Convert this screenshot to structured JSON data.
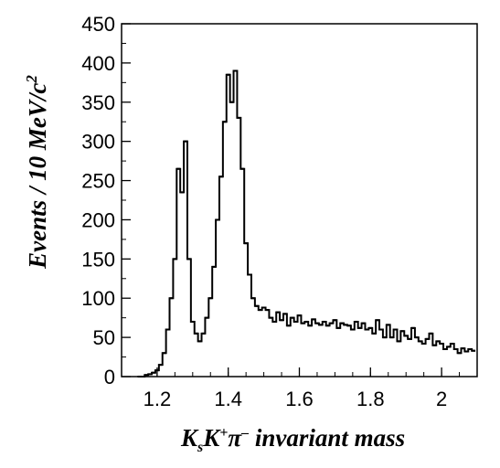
{
  "chart_data": {
    "type": "line",
    "style": "step histogram",
    "title": "",
    "xlabel": "KₛK⁺π⁻ invariant mass",
    "xlabel_parts": {
      "k1": "K",
      "sub": "s",
      "k2": "K",
      "sup1": "+",
      "pi": "π",
      "sup2": "–",
      "rest": " invariant mass"
    },
    "ylabel": "Events / 10 MeV/c²",
    "ylabel_parts": {
      "main": "Events / 10 MeV/",
      "c": "c",
      "sup": "2"
    },
    "xlim": [
      1.1,
      2.1
    ],
    "ylim": [
      0,
      450
    ],
    "x_ticks": [
      1.2,
      1.4,
      1.6,
      1.8,
      2.0
    ],
    "x_tick_labels": [
      "1.2",
      "1.4",
      "1.6",
      "1.8",
      "2"
    ],
    "y_ticks": [
      0,
      50,
      100,
      150,
      200,
      250,
      300,
      350,
      400,
      450
    ],
    "y_tick_labels": [
      "0",
      "50",
      "100",
      "150",
      "200",
      "250",
      "300",
      "350",
      "400",
      "450"
    ],
    "grid": false,
    "bin_width": 0.01,
    "series": [
      {
        "x": [
          1.15,
          1.16,
          1.17,
          1.18,
          1.19,
          1.2,
          1.21,
          1.22,
          1.23,
          1.24,
          1.25,
          1.26,
          1.27,
          1.28,
          1.29,
          1.3,
          1.31,
          1.32,
          1.33,
          1.34,
          1.35,
          1.36,
          1.37,
          1.38,
          1.39,
          1.4,
          1.41,
          1.42,
          1.43,
          1.44,
          1.45,
          1.46,
          1.47,
          1.48,
          1.49,
          1.5,
          1.51,
          1.52,
          1.53,
          1.54,
          1.55,
          1.56,
          1.57,
          1.58,
          1.59,
          1.6,
          1.61,
          1.62,
          1.63,
          1.64,
          1.65,
          1.66,
          1.67,
          1.68,
          1.69,
          1.7,
          1.71,
          1.72,
          1.73,
          1.74,
          1.75,
          1.76,
          1.77,
          1.78,
          1.79,
          1.8,
          1.81,
          1.82,
          1.83,
          1.84,
          1.85,
          1.86,
          1.87,
          1.88,
          1.89,
          1.9,
          1.91,
          1.92,
          1.93,
          1.94,
          1.95,
          1.96,
          1.97,
          1.98,
          1.99,
          2.0,
          2.01,
          2.02,
          2.03,
          2.04,
          2.05,
          2.06,
          2.07,
          2.08,
          2.09
        ],
        "values": [
          0,
          0,
          2,
          3,
          5,
          8,
          15,
          30,
          60,
          100,
          150,
          265,
          235,
          300,
          150,
          70,
          55,
          45,
          55,
          75,
          100,
          140,
          200,
          255,
          325,
          385,
          350,
          390,
          330,
          265,
          170,
          130,
          100,
          90,
          85,
          88,
          85,
          75,
          70,
          82,
          72,
          80,
          65,
          75,
          70,
          78,
          68,
          70,
          65,
          73,
          68,
          66,
          70,
          65,
          68,
          72,
          62,
          68,
          66,
          65,
          60,
          70,
          62,
          68,
          60,
          62,
          55,
          72,
          60,
          50,
          66,
          50,
          60,
          45,
          58,
          52,
          48,
          62,
          50,
          45,
          42,
          48,
          55,
          40,
          45,
          42,
          35,
          38,
          42,
          35,
          30,
          36,
          32,
          35,
          33
        ]
      }
    ]
  }
}
